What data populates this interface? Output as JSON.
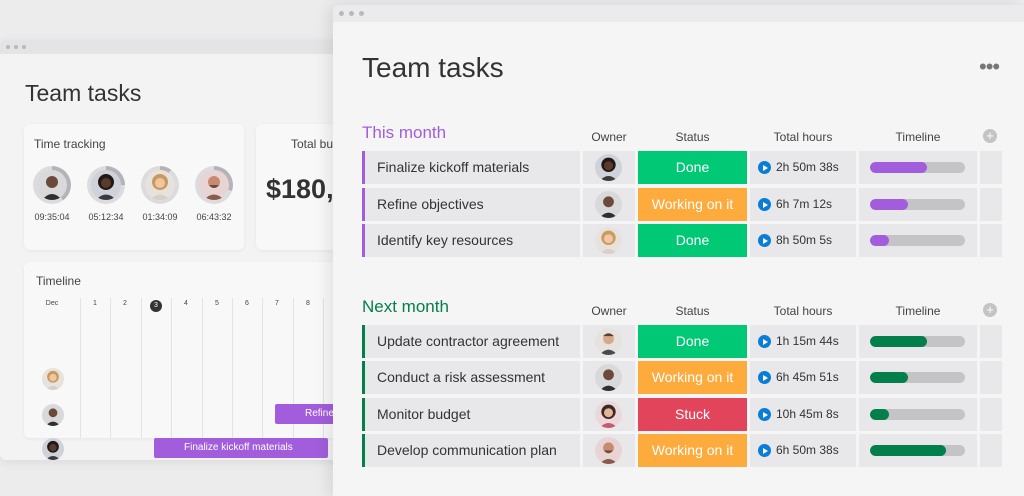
{
  "colors": {
    "this_month": "#a25ddc",
    "next_month": "#037f4c",
    "done": "#00c875",
    "working": "#fdab3d",
    "stuck": "#e2445c",
    "play": "#0a7dd8"
  },
  "back_window": {
    "title": "Team tasks",
    "time_tracking": {
      "title": "Time tracking",
      "people": [
        {
          "time": "09:35:04",
          "progress": 0.4
        },
        {
          "time": "05:12:34",
          "progress": 0.25
        },
        {
          "time": "01:34:09",
          "progress": 0.1
        },
        {
          "time": "06:43:32",
          "progress": 0.3
        }
      ]
    },
    "budget": {
      "title": "Total budget",
      "amount": "$180,"
    },
    "timeline": {
      "title": "Timeline",
      "days": [
        "Dec",
        "1",
        "2",
        "3",
        "4",
        "5",
        "6",
        "7",
        "8"
      ],
      "today": "3",
      "bars": [
        {
          "label": "Refine",
          "row": 1
        },
        {
          "label": "Finalize kickoff materials",
          "row": 2
        }
      ]
    }
  },
  "main": {
    "title": "Team tasks",
    "more_icon": "more-horizontal-icon",
    "columns": {
      "owner": "Owner",
      "status": "Status",
      "hours": "Total hours",
      "timeline": "Timeline"
    },
    "groups": [
      {
        "title": "This month",
        "rows": [
          {
            "name": "Finalize kickoff materials",
            "status": "Done",
            "status_color": "#00c875",
            "hours": "2h 50m 38s",
            "timeline_progress": 0.6
          },
          {
            "name": "Refine objectives",
            "status": "Working on it",
            "status_color": "#fdab3d",
            "hours": "6h 7m 12s",
            "timeline_progress": 0.4
          },
          {
            "name": "Identify key resources",
            "status": "Done",
            "status_color": "#00c875",
            "hours": "8h 50m 5s",
            "timeline_progress": 0.2
          }
        ]
      },
      {
        "title": "Next month",
        "rows": [
          {
            "name": "Update contractor agreement",
            "status": "Done",
            "status_color": "#00c875",
            "hours": "1h 15m 44s",
            "timeline_progress": 0.6
          },
          {
            "name": "Conduct a risk assessment",
            "status": "Working on it",
            "status_color": "#fdab3d",
            "hours": "6h 45m 51s",
            "timeline_progress": 0.4
          },
          {
            "name": "Monitor budget",
            "status": "Stuck",
            "status_color": "#e2445c",
            "hours": "10h 45m 8s",
            "timeline_progress": 0.2
          },
          {
            "name": "Develop communication plan",
            "status": "Working on it",
            "status_color": "#fdab3d",
            "hours": "6h 50m 38s",
            "timeline_progress": 0.8
          }
        ]
      }
    ]
  }
}
